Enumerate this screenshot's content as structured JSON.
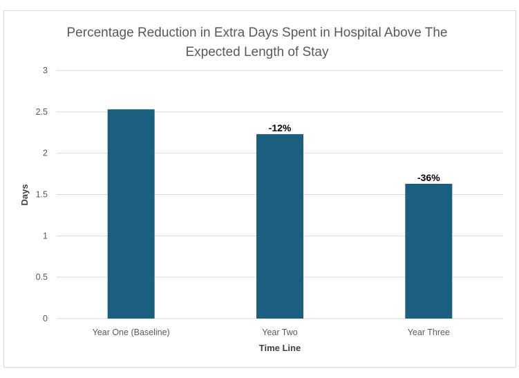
{
  "chart_data": {
    "type": "bar",
    "title_lines": [
      "Percentage Reduction in Extra Days Spent in Hospital Above The",
      "Expected Length of Stay"
    ],
    "xlabel": "Time Line",
    "ylabel": "Days",
    "categories": [
      "Year One (Baseline)",
      "Year Two",
      "Year Three"
    ],
    "values": [
      2.53,
      2.23,
      1.63
    ],
    "data_labels": [
      "",
      "-12%",
      "-36%"
    ],
    "ylim": [
      0,
      3
    ],
    "yticks": [
      0,
      0.5,
      1,
      1.5,
      2,
      2.5,
      3
    ],
    "ytick_labels": [
      "0",
      "0.5",
      "1",
      "1.5",
      "2",
      "2.5",
      "3"
    ],
    "grid": true,
    "bar_color": "#1a5e80",
    "grid_color": "#d9d9d9"
  }
}
